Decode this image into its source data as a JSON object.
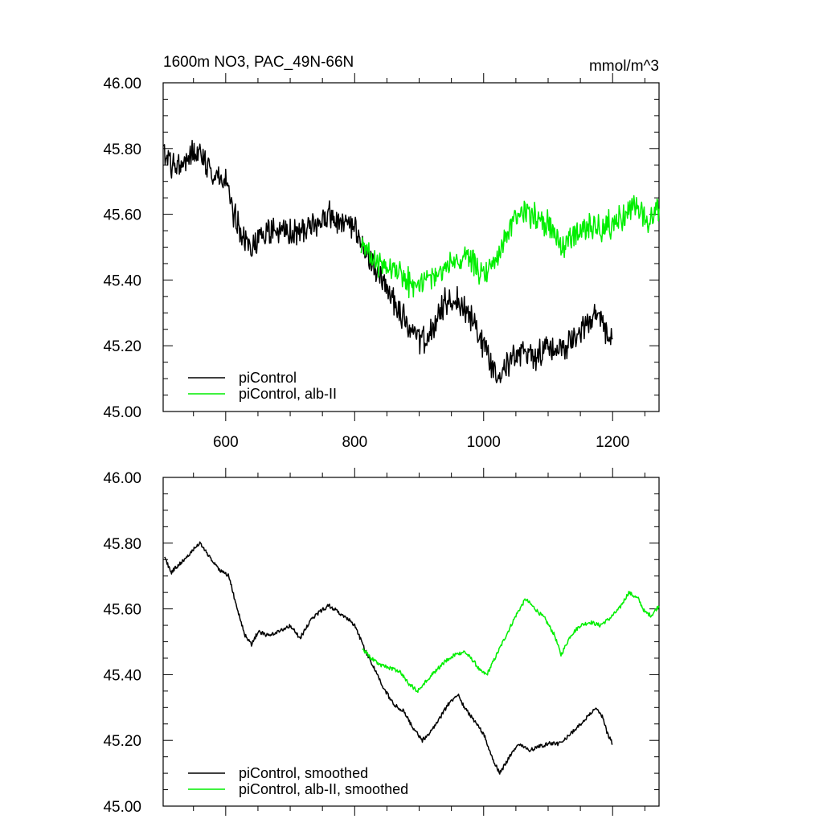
{
  "chart_data": [
    {
      "type": "line",
      "title": "1600m NO3, PAC_49N-66N",
      "units": "mmol/m^3",
      "xlim": [
        503,
        1272
      ],
      "ylim": [
        45.0,
        46.0
      ],
      "x_ticks": [
        600,
        800,
        1000,
        1200
      ],
      "x_tick_labels": [
        "600",
        "800",
        "1000",
        "1200"
      ],
      "y_ticks": [
        45.0,
        45.2,
        45.4,
        45.6,
        45.8,
        46.0
      ],
      "y_tick_labels": [
        "45.00",
        "45.20",
        "45.40",
        "45.60",
        "45.80",
        "46.00"
      ],
      "legend_position": "bottom-left",
      "noisy": true,
      "series": [
        {
          "name": "piControl",
          "color": "#000000",
          "points": [
            [
              503,
              45.79
            ],
            [
              520,
              45.74
            ],
            [
              540,
              45.77
            ],
            [
              560,
              45.8
            ],
            [
              580,
              45.72
            ],
            [
              600,
              45.7
            ],
            [
              610,
              45.62
            ],
            [
              625,
              45.52
            ],
            [
              640,
              45.51
            ],
            [
              660,
              45.54
            ],
            [
              680,
              45.55
            ],
            [
              700,
              45.54
            ],
            [
              720,
              45.55
            ],
            [
              740,
              45.57
            ],
            [
              760,
              45.6
            ],
            [
              780,
              45.57
            ],
            [
              800,
              45.55
            ],
            [
              820,
              45.47
            ],
            [
              840,
              45.41
            ],
            [
              860,
              45.34
            ],
            [
              880,
              45.27
            ],
            [
              900,
              45.21
            ],
            [
              920,
              45.24
            ],
            [
              940,
              45.33
            ],
            [
              960,
              45.34
            ],
            [
              980,
              45.29
            ],
            [
              1000,
              45.2
            ],
            [
              1020,
              45.12
            ],
            [
              1040,
              45.15
            ],
            [
              1060,
              45.18
            ],
            [
              1080,
              45.17
            ],
            [
              1100,
              45.2
            ],
            [
              1120,
              45.19
            ],
            [
              1140,
              45.22
            ],
            [
              1160,
              45.26
            ],
            [
              1180,
              45.3
            ],
            [
              1190,
              45.24
            ],
            [
              1200,
              45.21
            ]
          ]
        },
        {
          "name": "piControl, alb-II",
          "color": "#00ee00",
          "points": [
            [
              810,
              45.5
            ],
            [
              830,
              45.46
            ],
            [
              850,
              45.44
            ],
            [
              870,
              45.42
            ],
            [
              890,
              45.38
            ],
            [
              910,
              45.4
            ],
            [
              930,
              45.42
            ],
            [
              950,
              45.45
            ],
            [
              970,
              45.47
            ],
            [
              990,
              45.44
            ],
            [
              1000,
              45.4
            ],
            [
              1020,
              45.47
            ],
            [
              1040,
              45.55
            ],
            [
              1060,
              45.61
            ],
            [
              1080,
              45.6
            ],
            [
              1100,
              45.57
            ],
            [
              1120,
              45.5
            ],
            [
              1140,
              45.54
            ],
            [
              1160,
              45.56
            ],
            [
              1180,
              45.56
            ],
            [
              1200,
              45.57
            ],
            [
              1220,
              45.6
            ],
            [
              1240,
              45.62
            ],
            [
              1255,
              45.57
            ],
            [
              1272,
              45.62
            ]
          ]
        }
      ]
    },
    {
      "type": "line",
      "title": "",
      "units": "",
      "xlim": [
        503,
        1272
      ],
      "ylim": [
        45.0,
        46.0
      ],
      "x_ticks": [
        600,
        800,
        1000,
        1200
      ],
      "x_tick_labels": [],
      "y_ticks": [
        45.0,
        45.2,
        45.4,
        45.6,
        45.8,
        46.0
      ],
      "y_tick_labels": [
        "45.00",
        "45.20",
        "45.40",
        "45.60",
        "45.80",
        "46.00"
      ],
      "legend_position": "bottom-left",
      "noisy": false,
      "series": [
        {
          "name": "piControl, smoothed",
          "color": "#000000",
          "points": [
            [
              505,
              45.76
            ],
            [
              515,
              45.71
            ],
            [
              530,
              45.74
            ],
            [
              545,
              45.77
            ],
            [
              560,
              45.8
            ],
            [
              575,
              45.76
            ],
            [
              590,
              45.72
            ],
            [
              605,
              45.7
            ],
            [
              615,
              45.62
            ],
            [
              630,
              45.52
            ],
            [
              640,
              45.49
            ],
            [
              650,
              45.53
            ],
            [
              665,
              45.52
            ],
            [
              680,
              45.53
            ],
            [
              700,
              45.55
            ],
            [
              715,
              45.51
            ],
            [
              730,
              45.56
            ],
            [
              745,
              45.59
            ],
            [
              760,
              45.61
            ],
            [
              775,
              45.59
            ],
            [
              790,
              45.57
            ],
            [
              800,
              45.55
            ],
            [
              815,
              45.48
            ],
            [
              830,
              45.42
            ],
            [
              845,
              45.36
            ],
            [
              860,
              45.31
            ],
            [
              875,
              45.29
            ],
            [
              890,
              45.24
            ],
            [
              905,
              45.2
            ],
            [
              915,
              45.22
            ],
            [
              930,
              45.26
            ],
            [
              945,
              45.31
            ],
            [
              960,
              45.34
            ],
            [
              970,
              45.3
            ],
            [
              985,
              45.26
            ],
            [
              1000,
              45.22
            ],
            [
              1015,
              45.14
            ],
            [
              1025,
              45.1
            ],
            [
              1040,
              45.15
            ],
            [
              1055,
              45.19
            ],
            [
              1070,
              45.17
            ],
            [
              1085,
              45.18
            ],
            [
              1100,
              45.19
            ],
            [
              1115,
              45.19
            ],
            [
              1130,
              45.21
            ],
            [
              1145,
              45.24
            ],
            [
              1160,
              45.27
            ],
            [
              1175,
              45.3
            ],
            [
              1185,
              45.27
            ],
            [
              1192,
              45.22
            ],
            [
              1200,
              45.19
            ]
          ]
        },
        {
          "name": "piControl, alb-II, smoothed",
          "color": "#00ee00",
          "points": [
            [
              812,
              45.48
            ],
            [
              825,
              45.45
            ],
            [
              840,
              45.43
            ],
            [
              855,
              45.42
            ],
            [
              870,
              45.41
            ],
            [
              885,
              45.37
            ],
            [
              898,
              45.35
            ],
            [
              910,
              45.38
            ],
            [
              925,
              45.41
            ],
            [
              940,
              45.44
            ],
            [
              955,
              45.46
            ],
            [
              970,
              45.47
            ],
            [
              985,
              45.44
            ],
            [
              995,
              45.41
            ],
            [
              1005,
              45.4
            ],
            [
              1020,
              45.46
            ],
            [
              1035,
              45.52
            ],
            [
              1050,
              45.58
            ],
            [
              1065,
              45.63
            ],
            [
              1080,
              45.6
            ],
            [
              1095,
              45.57
            ],
            [
              1110,
              45.52
            ],
            [
              1120,
              45.46
            ],
            [
              1135,
              45.52
            ],
            [
              1150,
              45.55
            ],
            [
              1165,
              45.56
            ],
            [
              1180,
              45.55
            ],
            [
              1195,
              45.57
            ],
            [
              1210,
              45.6
            ],
            [
              1225,
              45.65
            ],
            [
              1240,
              45.63
            ],
            [
              1250,
              45.59
            ],
            [
              1260,
              45.58
            ],
            [
              1272,
              45.61
            ]
          ]
        }
      ]
    }
  ],
  "legends": [
    [
      {
        "label": "piControl",
        "color": "#000000"
      },
      {
        "label": "piControl, alb-II",
        "color": "#00ee00"
      }
    ],
    [
      {
        "label": "piControl, smoothed",
        "color": "#000000"
      },
      {
        "label": "piControl, alb-II, smoothed",
        "color": "#00ee00"
      }
    ]
  ]
}
